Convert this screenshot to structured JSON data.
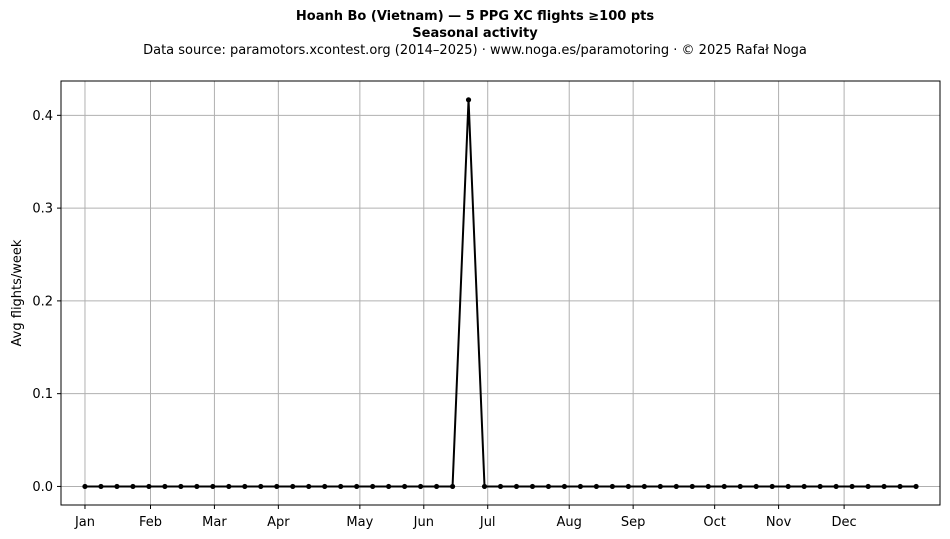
{
  "chart_data": {
    "type": "line",
    "title": "Hoanh Bo (Vietnam)  —  5 PPG XC flights ≥100 pts",
    "subtitle": "Seasonal activity",
    "source_note": "Data source: paramotors.xcontest.org (2014–2025)  ·  www.noga.es/paramotoring  ·  © 2025 Rafał Noga",
    "xlabel": "",
    "ylabel": "Avg flights/week",
    "x_unit": "week of year",
    "xlim": [
      -1.5,
      53.5
    ],
    "ylim": [
      -0.02,
      0.437
    ],
    "grid": true,
    "line_color": "#000000",
    "grid_color": "#b0b0b0",
    "x_ticks": [
      {
        "label": "Jan",
        "week": 0
      },
      {
        "label": "Feb",
        "week": 4.1
      },
      {
        "label": "Mar",
        "week": 8.1
      },
      {
        "label": "Apr",
        "week": 12.1
      },
      {
        "label": "May",
        "week": 17.2
      },
      {
        "label": "Jun",
        "week": 21.2
      },
      {
        "label": "Jul",
        "week": 25.2
      },
      {
        "label": "Aug",
        "week": 30.3
      },
      {
        "label": "Sep",
        "week": 34.3
      },
      {
        "label": "Oct",
        "week": 39.4
      },
      {
        "label": "Nov",
        "week": 43.4
      },
      {
        "label": "Dec",
        "week": 47.5
      }
    ],
    "y_ticks": [
      0.0,
      0.1,
      0.2,
      0.3,
      0.4
    ],
    "y_tick_labels": [
      "0.0",
      "0.1",
      "0.2",
      "0.3",
      "0.4"
    ],
    "series": [
      {
        "x": [
          0,
          1,
          2,
          3,
          4,
          5,
          6,
          7,
          8,
          9,
          10,
          11,
          12,
          13,
          14,
          15,
          16,
          17,
          18,
          19,
          20,
          21,
          22,
          23,
          24,
          25,
          26,
          27,
          28,
          29,
          30,
          31,
          32,
          33,
          34,
          35,
          36,
          37,
          38,
          39,
          40,
          41,
          42,
          43,
          44,
          45,
          46,
          47,
          48,
          49,
          50,
          51,
          52
        ],
        "values": [
          0,
          0,
          0,
          0,
          0,
          0,
          0,
          0,
          0,
          0,
          0,
          0,
          0,
          0,
          0,
          0,
          0,
          0,
          0,
          0,
          0,
          0,
          0,
          0,
          0.4167,
          0,
          0,
          0,
          0,
          0,
          0,
          0,
          0,
          0,
          0,
          0,
          0,
          0,
          0,
          0,
          0,
          0,
          0,
          0,
          0,
          0,
          0,
          0,
          0,
          0,
          0,
          0,
          0
        ]
      }
    ]
  }
}
